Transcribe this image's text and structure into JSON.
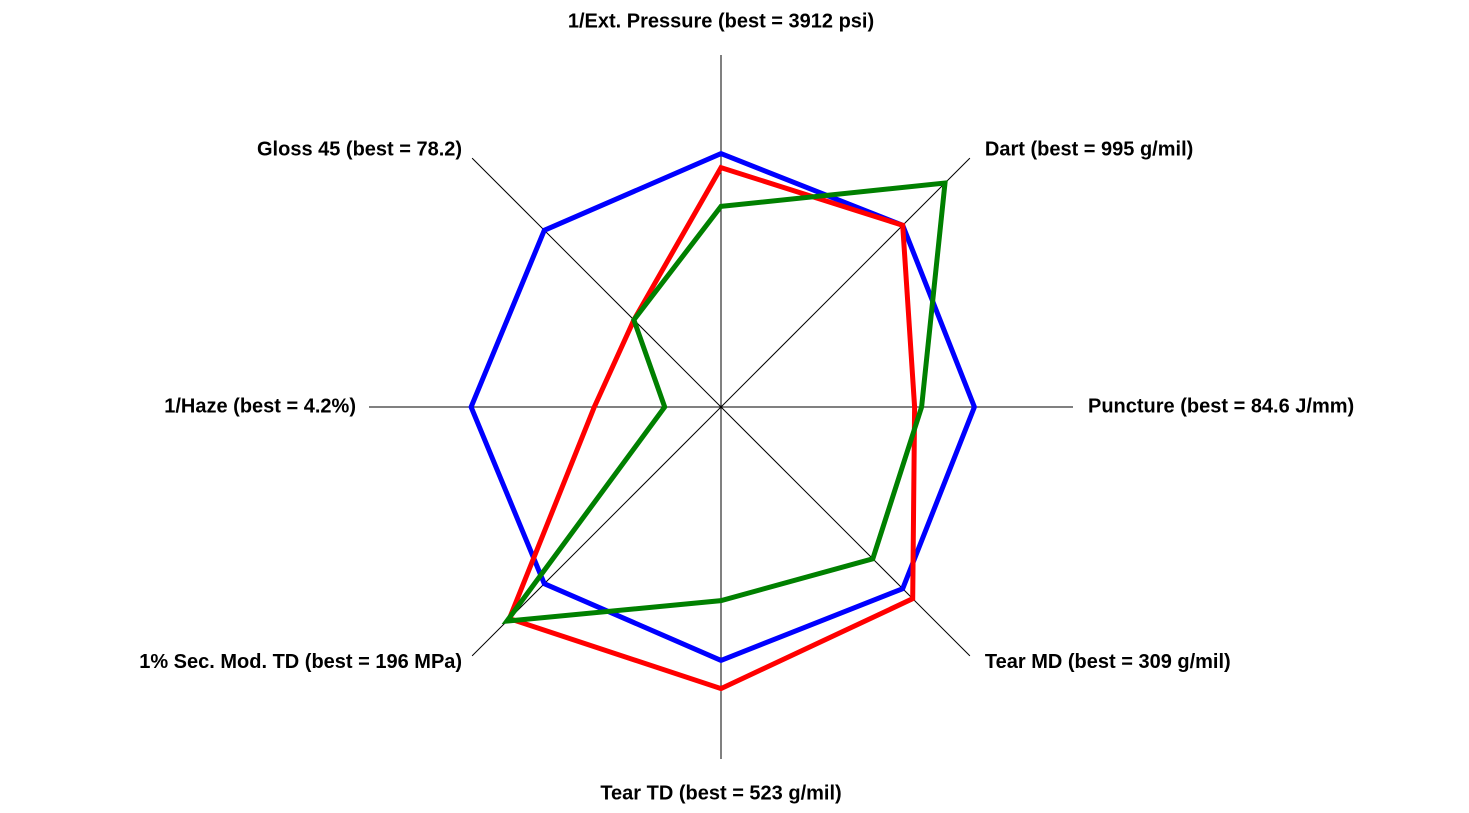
{
  "chart_data": {
    "type": "radar",
    "axes": [
      "1/Ext. Pressure (best = 3912 psi)",
      "Dart (best = 995 g/mil)",
      "Puncture (best = 84.6 J/mm)",
      "Tear MD (best = 309 g/mil)",
      "Tear TD (best = 523 g/mil)",
      "1% Sec. Mod. TD (best = 196 MPa)",
      "1/Haze (best = 4.2%)",
      "Gloss 45 (best = 78.2)"
    ],
    "ylim": [
      0,
      1
    ],
    "series": [
      {
        "color": "#0000ff",
        "values": [
          0.72,
          0.73,
          0.72,
          0.73,
          0.72,
          0.71,
          0.71,
          0.71
        ]
      },
      {
        "color": "#ff0000",
        "values": [
          0.68,
          0.73,
          0.55,
          0.77,
          0.8,
          0.85,
          0.36,
          0.35
        ]
      },
      {
        "color": "#008000",
        "values": [
          0.57,
          0.9,
          0.57,
          0.61,
          0.55,
          0.86,
          0.16,
          0.35
        ]
      }
    ]
  }
}
